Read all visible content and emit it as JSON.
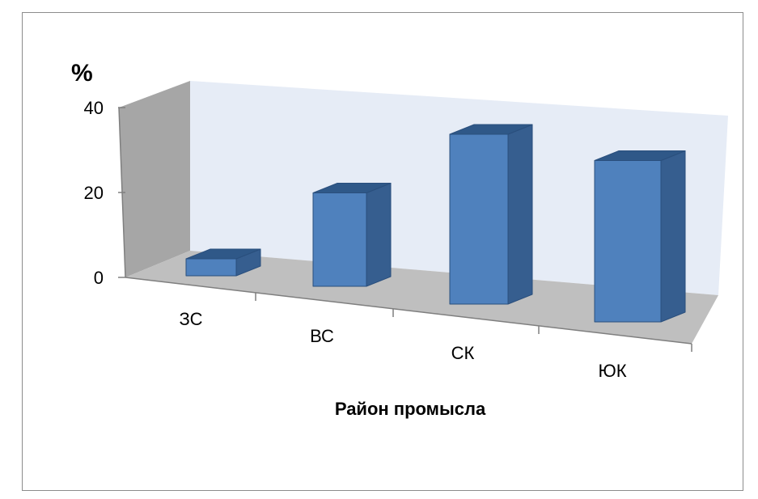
{
  "chart_data": {
    "type": "bar",
    "subtype": "3d-column",
    "categories": [
      "ЗС",
      "ВС",
      "СК",
      "ЮК"
    ],
    "values": [
      4,
      22,
      40,
      38
    ],
    "unit_label": "%",
    "xlabel": "Район промысла",
    "ylabel": "",
    "ylim": [
      0,
      40
    ],
    "yticks": [
      "0",
      "20",
      "40"
    ],
    "grid": false,
    "legend": "none",
    "colors": {
      "bar_front": "#4f81bd",
      "bar_side": "#365e8f",
      "bar_top": "#2f5888",
      "bar_outline": "#2a4f7d",
      "back_wall": "#e6ecf6",
      "side_wall": "#a6a6a6",
      "floor": "#bfbfbf",
      "axis_line": "#7f7f7f",
      "frame": "#8c8c8c"
    }
  }
}
